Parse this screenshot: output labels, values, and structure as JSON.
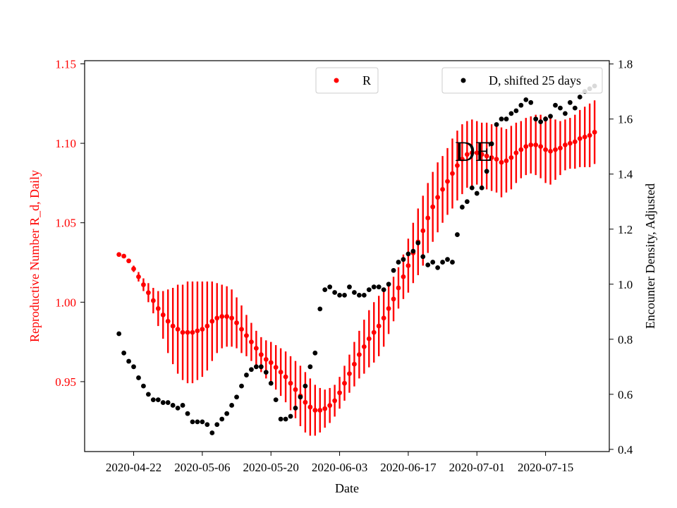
{
  "chart_data": {
    "type": "scatter",
    "annotation": "DE",
    "xlabel": "Date",
    "ylabel": "Reproductive Number R_d, Daily",
    "y2label": "Encounter Density, Adjusted",
    "x_ticks": [
      "2020-04-22",
      "2020-05-06",
      "2020-05-20",
      "2020-06-03",
      "2020-06-17",
      "2020-07-01",
      "2020-07-15"
    ],
    "y_ticks": [
      "0.95",
      "1.00",
      "1.05",
      "1.10",
      "1.15"
    ],
    "y2_ticks": [
      "0.4",
      "0.6",
      "0.8",
      "1.0",
      "1.2",
      "1.4",
      "1.6",
      "1.8"
    ],
    "ylim": [
      0.906,
      1.152
    ],
    "y2lim": [
      0.392,
      1.812
    ],
    "xlim": [
      "2020-04-12",
      "2020-07-28"
    ],
    "colors": {
      "R": "#ff0000",
      "D": "#000000",
      "left_axis": "#ff0000",
      "right_axis": "#000000"
    },
    "legend": {
      "R_label": "R",
      "D_label": "D, shifted 25 days",
      "R_placement": "top-center",
      "D_placement": "top-right"
    },
    "series": [
      {
        "name": "R",
        "axis": "left",
        "marker": "dot",
        "dates": [
          "2020-04-19",
          "2020-04-20",
          "2020-04-21",
          "2020-04-22",
          "2020-04-23",
          "2020-04-24",
          "2020-04-25",
          "2020-04-26",
          "2020-04-27",
          "2020-04-28",
          "2020-04-29",
          "2020-04-30",
          "2020-05-01",
          "2020-05-02",
          "2020-05-03",
          "2020-05-04",
          "2020-05-05",
          "2020-05-06",
          "2020-05-07",
          "2020-05-08",
          "2020-05-09",
          "2020-05-10",
          "2020-05-11",
          "2020-05-12",
          "2020-05-13",
          "2020-05-14",
          "2020-05-15",
          "2020-05-16",
          "2020-05-17",
          "2020-05-18",
          "2020-05-19",
          "2020-05-20",
          "2020-05-21",
          "2020-05-22",
          "2020-05-23",
          "2020-05-24",
          "2020-05-25",
          "2020-05-26",
          "2020-05-27",
          "2020-05-28",
          "2020-05-29",
          "2020-05-30",
          "2020-05-31",
          "2020-06-01",
          "2020-06-02",
          "2020-06-03",
          "2020-06-04",
          "2020-06-05",
          "2020-06-06",
          "2020-06-07",
          "2020-06-08",
          "2020-06-09",
          "2020-06-10",
          "2020-06-11",
          "2020-06-12",
          "2020-06-13",
          "2020-06-14",
          "2020-06-15",
          "2020-06-16",
          "2020-06-17",
          "2020-06-18",
          "2020-06-19",
          "2020-06-20",
          "2020-06-21",
          "2020-06-22",
          "2020-06-23",
          "2020-06-24",
          "2020-06-25",
          "2020-06-26",
          "2020-06-27",
          "2020-06-28",
          "2020-06-29",
          "2020-06-30",
          "2020-07-01",
          "2020-07-02",
          "2020-07-03",
          "2020-07-04",
          "2020-07-05",
          "2020-07-06",
          "2020-07-07",
          "2020-07-08",
          "2020-07-09",
          "2020-07-10",
          "2020-07-11",
          "2020-07-12",
          "2020-07-13",
          "2020-07-14",
          "2020-07-15",
          "2020-07-16",
          "2020-07-17",
          "2020-07-18",
          "2020-07-19",
          "2020-07-20",
          "2020-07-21",
          "2020-07-22",
          "2020-07-23",
          "2020-07-24",
          "2020-07-25"
        ],
        "values": [
          1.03,
          1.029,
          1.026,
          1.021,
          1.016,
          1.011,
          1.006,
          1.001,
          0.996,
          0.992,
          0.988,
          0.985,
          0.983,
          0.981,
          0.981,
          0.981,
          0.982,
          0.983,
          0.985,
          0.988,
          0.99,
          0.991,
          0.991,
          0.99,
          0.987,
          0.983,
          0.979,
          0.975,
          0.971,
          0.967,
          0.964,
          0.962,
          0.959,
          0.956,
          0.953,
          0.949,
          0.945,
          0.941,
          0.937,
          0.934,
          0.932,
          0.932,
          0.933,
          0.935,
          0.938,
          0.943,
          0.949,
          0.955,
          0.961,
          0.967,
          0.972,
          0.977,
          0.981,
          0.985,
          0.99,
          0.996,
          1.002,
          1.009,
          1.016,
          1.023,
          1.031,
          1.038,
          1.045,
          1.053,
          1.06,
          1.066,
          1.071,
          1.076,
          1.081,
          1.086,
          1.09,
          1.093,
          1.094,
          1.094,
          1.093,
          1.092,
          1.091,
          1.09,
          1.088,
          1.089,
          1.091,
          1.094,
          1.096,
          1.098,
          1.099,
          1.099,
          1.098,
          1.096,
          1.095,
          1.096,
          1.097,
          1.099,
          1.1,
          1.101,
          1.103,
          1.104,
          1.105,
          1.107
        ],
        "err_low": [
          0.0,
          0.0,
          0.001,
          0.002,
          0.003,
          0.004,
          0.006,
          0.008,
          0.011,
          0.015,
          0.02,
          0.024,
          0.028,
          0.03,
          0.032,
          0.032,
          0.031,
          0.03,
          0.028,
          0.025,
          0.022,
          0.02,
          0.019,
          0.018,
          0.016,
          0.015,
          0.013,
          0.012,
          0.011,
          0.011,
          0.012,
          0.013,
          0.014,
          0.015,
          0.016,
          0.017,
          0.018,
          0.019,
          0.019,
          0.018,
          0.016,
          0.014,
          0.012,
          0.011,
          0.01,
          0.01,
          0.011,
          0.012,
          0.014,
          0.015,
          0.017,
          0.018,
          0.019,
          0.019,
          0.018,
          0.016,
          0.014,
          0.013,
          0.014,
          0.017,
          0.019,
          0.021,
          0.022,
          0.022,
          0.022,
          0.022,
          0.021,
          0.021,
          0.022,
          0.022,
          0.022,
          0.021,
          0.021,
          0.02,
          0.02,
          0.021,
          0.021,
          0.021,
          0.022,
          0.02,
          0.02,
          0.019,
          0.018,
          0.018,
          0.018,
          0.019,
          0.02,
          0.021,
          0.021,
          0.019,
          0.017,
          0.016,
          0.016,
          0.017,
          0.018,
          0.019,
          0.02,
          0.02
        ],
        "err_high": [
          0.0,
          0.0,
          0.001,
          0.002,
          0.003,
          0.004,
          0.006,
          0.008,
          0.011,
          0.015,
          0.02,
          0.024,
          0.028,
          0.03,
          0.032,
          0.032,
          0.031,
          0.03,
          0.028,
          0.025,
          0.022,
          0.02,
          0.019,
          0.018,
          0.016,
          0.015,
          0.013,
          0.012,
          0.011,
          0.011,
          0.012,
          0.013,
          0.014,
          0.015,
          0.016,
          0.017,
          0.018,
          0.019,
          0.019,
          0.018,
          0.016,
          0.014,
          0.012,
          0.011,
          0.01,
          0.01,
          0.011,
          0.012,
          0.014,
          0.015,
          0.017,
          0.018,
          0.019,
          0.019,
          0.018,
          0.016,
          0.014,
          0.013,
          0.014,
          0.017,
          0.019,
          0.021,
          0.022,
          0.022,
          0.022,
          0.022,
          0.021,
          0.021,
          0.022,
          0.022,
          0.022,
          0.021,
          0.021,
          0.02,
          0.02,
          0.021,
          0.021,
          0.021,
          0.022,
          0.02,
          0.02,
          0.019,
          0.018,
          0.018,
          0.018,
          0.019,
          0.02,
          0.021,
          0.021,
          0.019,
          0.017,
          0.016,
          0.016,
          0.017,
          0.018,
          0.019,
          0.02,
          0.02
        ]
      },
      {
        "name": "D, shifted 25 days",
        "axis": "right",
        "marker": "dot",
        "dates": [
          "2020-04-19",
          "2020-04-20",
          "2020-04-21",
          "2020-04-22",
          "2020-04-23",
          "2020-04-24",
          "2020-04-25",
          "2020-04-26",
          "2020-04-27",
          "2020-04-28",
          "2020-04-29",
          "2020-04-30",
          "2020-05-01",
          "2020-05-02",
          "2020-05-03",
          "2020-05-04",
          "2020-05-05",
          "2020-05-06",
          "2020-05-07",
          "2020-05-08",
          "2020-05-09",
          "2020-05-10",
          "2020-05-11",
          "2020-05-12",
          "2020-05-13",
          "2020-05-14",
          "2020-05-15",
          "2020-05-16",
          "2020-05-17",
          "2020-05-18",
          "2020-05-19",
          "2020-05-20",
          "2020-05-21",
          "2020-05-22",
          "2020-05-23",
          "2020-05-24",
          "2020-05-25",
          "2020-05-26",
          "2020-05-27",
          "2020-05-28",
          "2020-05-29",
          "2020-05-30",
          "2020-05-31",
          "2020-06-01",
          "2020-06-02",
          "2020-06-03",
          "2020-06-04",
          "2020-06-05",
          "2020-06-06",
          "2020-06-07",
          "2020-06-08",
          "2020-06-09",
          "2020-06-10",
          "2020-06-11",
          "2020-06-12",
          "2020-06-13",
          "2020-06-14",
          "2020-06-15",
          "2020-06-16",
          "2020-06-17",
          "2020-06-18",
          "2020-06-19",
          "2020-06-20",
          "2020-06-21",
          "2020-06-22",
          "2020-06-23",
          "2020-06-24",
          "2020-06-25",
          "2020-06-26",
          "2020-06-27",
          "2020-06-28",
          "2020-06-29",
          "2020-06-30",
          "2020-07-01",
          "2020-07-02",
          "2020-07-03",
          "2020-07-04",
          "2020-07-05",
          "2020-07-06",
          "2020-07-07",
          "2020-07-08",
          "2020-07-09",
          "2020-07-10",
          "2020-07-11",
          "2020-07-12",
          "2020-07-13",
          "2020-07-14",
          "2020-07-15",
          "2020-07-16",
          "2020-07-17",
          "2020-07-18",
          "2020-07-19",
          "2020-07-20",
          "2020-07-21",
          "2020-07-22",
          "2020-07-23",
          "2020-07-24",
          "2020-07-25"
        ],
        "values": [
          0.82,
          0.75,
          0.72,
          0.7,
          0.66,
          0.63,
          0.6,
          0.58,
          0.58,
          0.57,
          0.57,
          0.56,
          0.55,
          0.56,
          0.53,
          0.5,
          0.5,
          0.5,
          0.49,
          0.46,
          0.49,
          0.51,
          0.53,
          0.56,
          0.59,
          0.63,
          0.67,
          0.69,
          0.7,
          0.7,
          0.68,
          0.64,
          0.58,
          0.51,
          0.51,
          0.52,
          0.55,
          0.59,
          0.63,
          0.7,
          0.75,
          0.91,
          0.98,
          0.99,
          0.97,
          0.96,
          0.96,
          0.99,
          0.97,
          0.96,
          0.96,
          0.98,
          0.99,
          0.99,
          0.98,
          1.0,
          1.05,
          1.08,
          1.09,
          1.11,
          1.12,
          1.15,
          1.1,
          1.07,
          1.08,
          1.06,
          1.08,
          1.09,
          1.08,
          1.18,
          1.28,
          1.3,
          1.35,
          1.33,
          1.35,
          1.41,
          1.51,
          1.58,
          1.6,
          1.6,
          1.62,
          1.63,
          1.65,
          1.67,
          1.66,
          1.6,
          1.59,
          1.6,
          1.61,
          1.65,
          1.64,
          1.62,
          1.66,
          1.64,
          1.68,
          1.7,
          1.71,
          1.72
        ]
      }
    ]
  }
}
